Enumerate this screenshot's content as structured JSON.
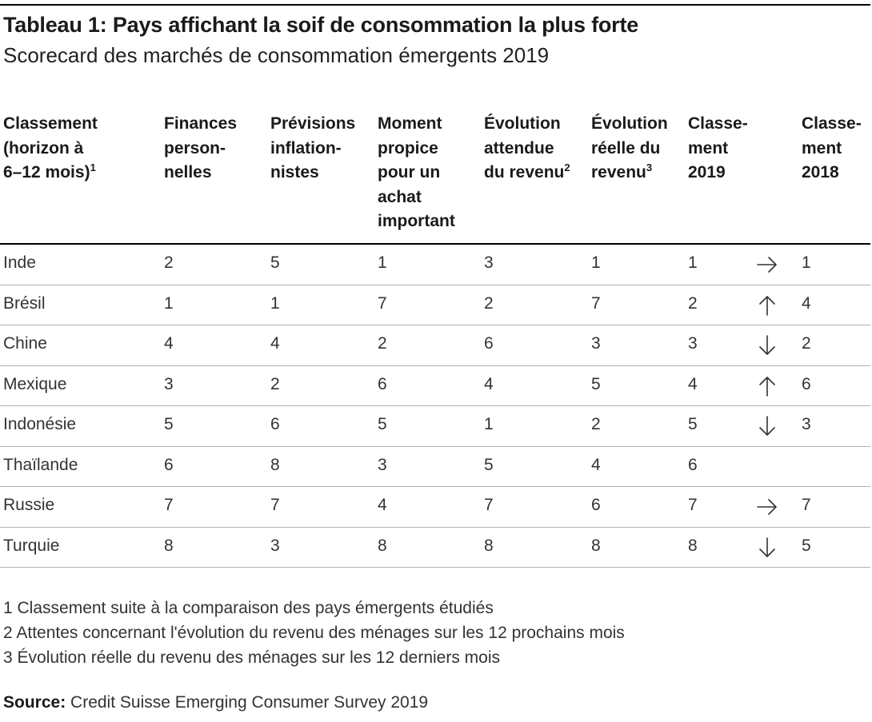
{
  "chart_data": {
    "type": "table",
    "title": "Tableau 1: Pays affichant la soif de consommation la plus forte",
    "subtitle": "Scorecard des marchés de consommation émergents 2019",
    "columns": [
      {
        "lines": [
          "Classement",
          "(horizon à",
          "6–12 mois)"
        ],
        "sup": "1"
      },
      {
        "lines": [
          "Finances",
          "person-",
          "nelles"
        ],
        "sup": ""
      },
      {
        "lines": [
          "Prévisions",
          "inflation-",
          "nistes"
        ],
        "sup": ""
      },
      {
        "lines": [
          "Moment",
          "propice",
          "pour un",
          "achat",
          "important"
        ],
        "sup": ""
      },
      {
        "lines": [
          "Évolution",
          "attendue",
          "du revenu"
        ],
        "sup": "2"
      },
      {
        "lines": [
          "Évolution",
          "réelle du",
          "revenu"
        ],
        "sup": "3"
      },
      {
        "lines": [
          "Classe-",
          "ment",
          "2019"
        ],
        "sup": ""
      },
      {
        "lines": [
          "Classe-",
          "ment",
          "2018"
        ],
        "sup": ""
      }
    ],
    "rows": [
      {
        "country": "Inde",
        "finances": "2",
        "inflation": "5",
        "moment": "1",
        "attendue": "3",
        "reelle": "1",
        "rank2019": "1",
        "trend": "right",
        "rank2018": "1"
      },
      {
        "country": "Brésil",
        "finances": "1",
        "inflation": "1",
        "moment": "7",
        "attendue": "2",
        "reelle": "7",
        "rank2019": "2",
        "trend": "up",
        "rank2018": "4"
      },
      {
        "country": "Chine",
        "finances": "4",
        "inflation": "4",
        "moment": "2",
        "attendue": "6",
        "reelle": "3",
        "rank2019": "3",
        "trend": "down",
        "rank2018": "2"
      },
      {
        "country": "Mexique",
        "finances": "3",
        "inflation": "2",
        "moment": "6",
        "attendue": "4",
        "reelle": "5",
        "rank2019": "4",
        "trend": "up",
        "rank2018": "6"
      },
      {
        "country": "Indonésie",
        "finances": "5",
        "inflation": "6",
        "moment": "5",
        "attendue": "1",
        "reelle": "2",
        "rank2019": "5",
        "trend": "down",
        "rank2018": "3"
      },
      {
        "country": "Thaïlande",
        "finances": "6",
        "inflation": "8",
        "moment": "3",
        "attendue": "5",
        "reelle": "4",
        "rank2019": "6",
        "trend": "",
        "rank2018": ""
      },
      {
        "country": "Russie",
        "finances": "7",
        "inflation": "7",
        "moment": "4",
        "attendue": "7",
        "reelle": "6",
        "rank2019": "7",
        "trend": "right",
        "rank2018": "7"
      },
      {
        "country": "Turquie",
        "finances": "8",
        "inflation": "3",
        "moment": "8",
        "attendue": "8",
        "reelle": "8",
        "rank2019": "8",
        "trend": "down",
        "rank2018": "5"
      }
    ],
    "footnotes": [
      "1 Classement suite à la comparaison des pays émergents étudiés",
      "2 Attentes concernant l'évolution du revenu des ménages sur les 12 prochains mois",
      "3 Évolution réelle du revenu des ménages sur les 12 derniers mois"
    ],
    "source_label": "Source:",
    "source_text": "Credit Suisse Emerging Consumer Survey 2019"
  }
}
